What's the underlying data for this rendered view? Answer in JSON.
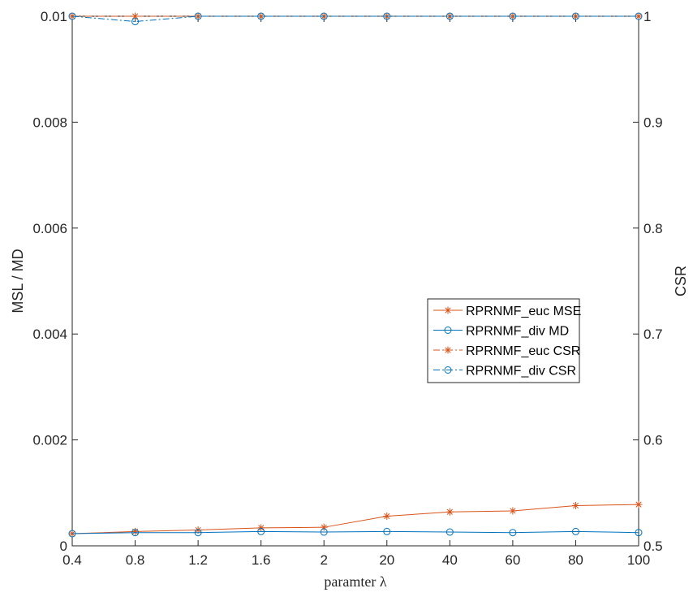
{
  "chart_data": {
    "type": "line",
    "categories": [
      "0.4",
      "0.8",
      "1.2",
      "1.6",
      "2",
      "20",
      "40",
      "60",
      "80",
      "100"
    ],
    "xlabel": "paramter λ",
    "ylabel_left": "MSL / MD",
    "ylabel_right": "CSR",
    "ylim_left": [
      0,
      0.01
    ],
    "ylim_right": [
      0.5,
      1
    ],
    "yticks_left": [
      "0",
      "0.002",
      "0.004",
      "0.006",
      "0.008",
      "0.01"
    ],
    "yticks_right": [
      "0.5",
      "0.6",
      "0.7",
      "0.8",
      "0.9",
      "1"
    ],
    "grid": false,
    "legend_position": "center-right",
    "series": [
      {
        "name": "RPRNMF_euc MSE",
        "axis": "left",
        "color": "#D95319",
        "marker": "star",
        "line": "solid",
        "values": [
          0.00023,
          0.00027,
          0.0003,
          0.00034,
          0.00035,
          0.00056,
          0.00064,
          0.00066,
          0.00076,
          0.00078
        ]
      },
      {
        "name": "RPRNMF_div MD",
        "axis": "left",
        "color": "#0072BD",
        "marker": "circle",
        "line": "solid",
        "values": [
          0.00023,
          0.00025,
          0.00025,
          0.00027,
          0.00026,
          0.00027,
          0.00026,
          0.00025,
          0.00027,
          0.00025
        ]
      },
      {
        "name": "RPRNMF_euc CSR",
        "axis": "right",
        "color": "#D95319",
        "marker": "star",
        "line": "dashdot",
        "values": [
          1,
          1,
          1,
          1,
          1,
          1,
          1,
          1,
          1,
          1
        ]
      },
      {
        "name": "RPRNMF_div CSR",
        "axis": "right",
        "color": "#0072BD",
        "marker": "circle",
        "line": "dashdot",
        "values": [
          1,
          0.995,
          1,
          1,
          1,
          1,
          1,
          1,
          1,
          1
        ]
      }
    ]
  }
}
